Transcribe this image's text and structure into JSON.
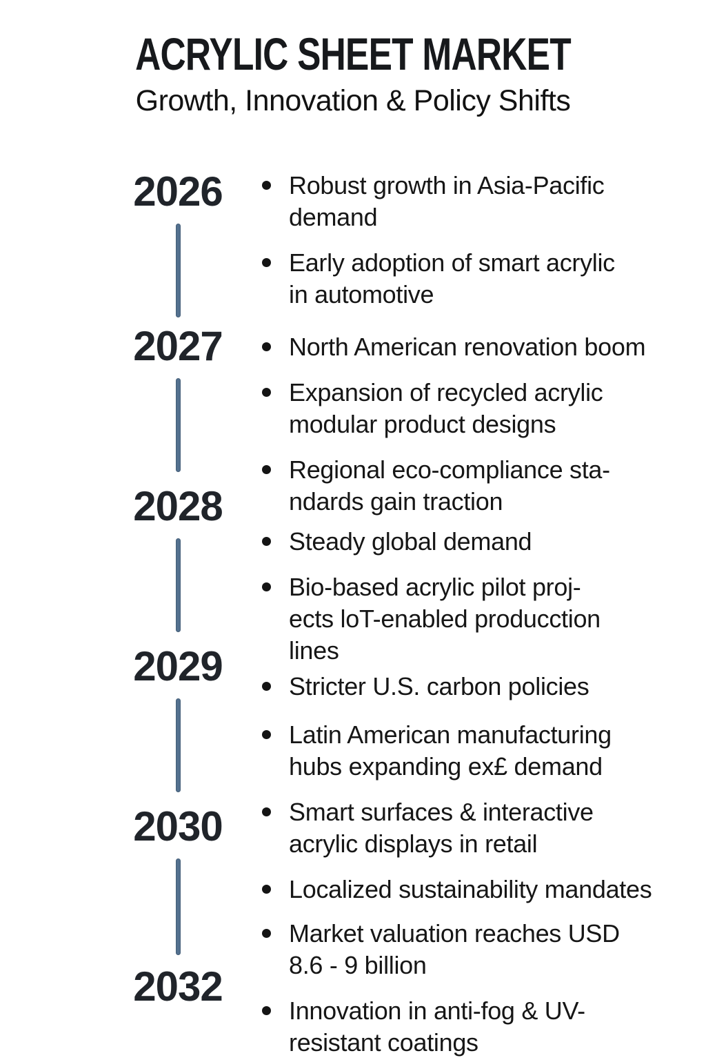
{
  "header": {
    "title": "ACRYLIC SHEET MARKET",
    "subtitle": "Growth, Innovation & Policy Shifts"
  },
  "colors": {
    "timeline_line": "#54718f",
    "bullet_dot": "#141414",
    "text": "#161616",
    "background": "#ffffff"
  },
  "timeline": {
    "entries": [
      {
        "year": "2026",
        "bullets": [
          "Robust growth in Asia-Pacific\ndemand",
          "Early adoption of smart acrylic\nin automotive"
        ]
      },
      {
        "year": "2027",
        "bullets": [
          "North American renovation boom",
          "Expansion of recycled acrylic\nmodular product designs",
          "Regional eco-compliance sta-\nndards gain traction"
        ]
      },
      {
        "year": "2028",
        "bullets": [
          "Steady global demand",
          "Bio-based acrylic pilot proj-\nects loT-enabled producction\nlines"
        ]
      },
      {
        "year": "2029",
        "bullets": [
          "Stricter U.S. carbon policies"
        ]
      },
      {
        "year": "2030",
        "bullets": [
          "Latin American manufacturing\nhubs expanding ex£ demand",
          "Smart surfaces & interactive\nacrylic displays in retail",
          "Localized sustainability mandates"
        ]
      },
      {
        "year": "2032",
        "bullets": [
          "Market valuation reaches USD\n8.6 - 9 billion",
          "Innovation in anti-fog & UV-\nresistant coatings"
        ]
      }
    ]
  }
}
